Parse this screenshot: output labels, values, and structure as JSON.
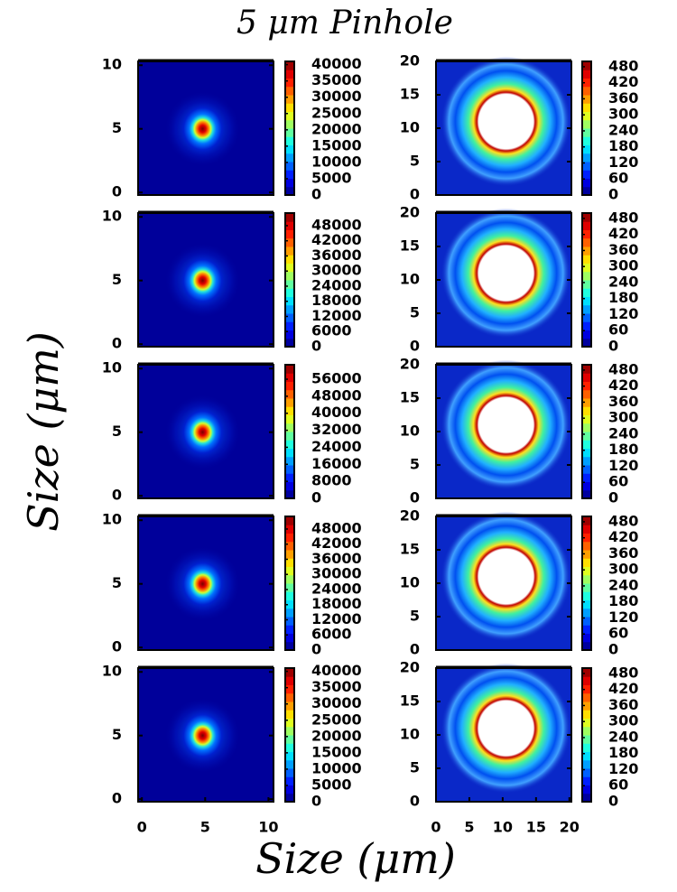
{
  "title": "5 μm Pinhole",
  "xlabel": "Size (μm)",
  "ylabel": "Size (μm)",
  "chart_data": [
    {
      "type": "heatmap",
      "xlim": [
        -0.3,
        10.4
      ],
      "ylim": [
        -0.2,
        10.3
      ],
      "yticks": [
        0,
        5,
        10
      ],
      "clim": [
        0,
        41000
      ],
      "cticks": [
        0,
        5000,
        10000,
        15000,
        20000,
        25000,
        30000,
        35000,
        40000
      ]
    },
    {
      "type": "heatmap",
      "xlim": [
        0,
        20.3
      ],
      "ylim": [
        0,
        20
      ],
      "yticks": [
        0,
        5,
        10,
        15,
        20
      ],
      "clim": [
        0,
        500
      ],
      "cticks": [
        0,
        60,
        120,
        180,
        240,
        300,
        360,
        420,
        480
      ]
    },
    {
      "type": "heatmap",
      "xlim": [
        -0.3,
        10.4
      ],
      "ylim": [
        -0.2,
        10.3
      ],
      "yticks": [
        0,
        5,
        10
      ],
      "clim": [
        0,
        53000
      ],
      "cticks": [
        0,
        6000,
        12000,
        18000,
        24000,
        30000,
        36000,
        42000,
        48000
      ]
    },
    {
      "type": "heatmap",
      "xlim": [
        0,
        20.3
      ],
      "ylim": [
        0,
        20
      ],
      "yticks": [
        0,
        5,
        10,
        15,
        20
      ],
      "clim": [
        0,
        500
      ],
      "cticks": [
        0,
        60,
        120,
        180,
        240,
        300,
        360,
        420,
        480
      ]
    },
    {
      "type": "heatmap",
      "xlim": [
        -0.3,
        10.4
      ],
      "ylim": [
        -0.2,
        10.3
      ],
      "yticks": [
        0,
        5,
        10
      ],
      "clim": [
        0,
        62800
      ],
      "cticks": [
        0,
        8000,
        16000,
        24000,
        32000,
        40000,
        48000,
        56000
      ]
    },
    {
      "type": "heatmap",
      "xlim": [
        0,
        20.3
      ],
      "ylim": [
        0,
        20
      ],
      "yticks": [
        0,
        5,
        10,
        15,
        20
      ],
      "clim": [
        0,
        500
      ],
      "cticks": [
        0,
        60,
        120,
        180,
        240,
        300,
        360,
        420,
        480
      ]
    },
    {
      "type": "heatmap",
      "xlim": [
        -0.3,
        10.4
      ],
      "ylim": [
        -0.2,
        10.3
      ],
      "yticks": [
        0,
        5,
        10
      ],
      "clim": [
        0,
        53000
      ],
      "cticks": [
        0,
        6000,
        12000,
        18000,
        24000,
        30000,
        36000,
        42000,
        48000
      ]
    },
    {
      "type": "heatmap",
      "xlim": [
        0,
        20.3
      ],
      "ylim": [
        0,
        20
      ],
      "yticks": [
        0,
        5,
        10,
        15,
        20
      ],
      "clim": [
        0,
        500
      ],
      "cticks": [
        0,
        60,
        120,
        180,
        240,
        300,
        360,
        420,
        480
      ]
    },
    {
      "type": "heatmap",
      "xlim": [
        -0.3,
        10.4
      ],
      "ylim": [
        -0.2,
        10.3
      ],
      "yticks": [
        0,
        5,
        10
      ],
      "xticks": [
        0,
        5,
        10
      ],
      "clim": [
        0,
        41000
      ],
      "cticks": [
        0,
        5000,
        10000,
        15000,
        20000,
        25000,
        30000,
        35000,
        40000
      ]
    },
    {
      "type": "heatmap",
      "xlim": [
        0,
        20.3
      ],
      "ylim": [
        0,
        20
      ],
      "yticks": [
        0,
        5,
        10,
        15,
        20
      ],
      "xticks": [
        0,
        5,
        10,
        15,
        20
      ],
      "clim": [
        0,
        500
      ],
      "cticks": [
        0,
        60,
        120,
        180,
        240,
        300,
        360,
        420,
        480
      ]
    }
  ]
}
